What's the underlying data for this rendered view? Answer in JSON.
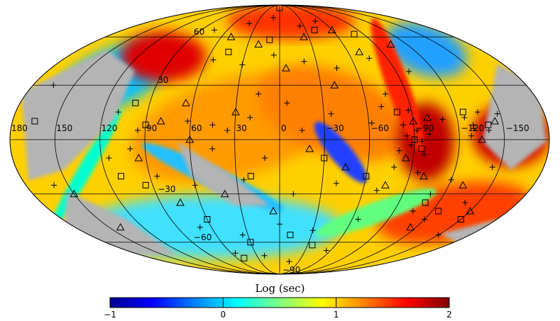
{
  "chart_data": {
    "type": "heatmap",
    "projection": "mollweide",
    "colorbar": {
      "title": "Log (sec)",
      "range": [
        -1,
        2
      ],
      "ticks": [
        -1,
        0,
        1,
        2
      ],
      "tick_labels": [
        "−1",
        "0",
        "1",
        "2"
      ],
      "colormap": [
        "#00008f",
        "#0000ff",
        "#0080ff",
        "#00ffff",
        "#80ff80",
        "#ffff00",
        "#ff8000",
        "#ff0000",
        "#800000"
      ]
    },
    "no_data_color": "#b4b4b4",
    "grid": true,
    "longitude_labels": [
      {
        "lon": 180,
        "text": "180"
      },
      {
        "lon": 150,
        "text": "150"
      },
      {
        "lon": 120,
        "text": "120"
      },
      {
        "lon": 90,
        "text": "90"
      },
      {
        "lon": 60,
        "text": "60"
      },
      {
        "lon": 30,
        "text": "30"
      },
      {
        "lon": 0,
        "text": "0"
      },
      {
        "lon": -30,
        "text": "−30"
      },
      {
        "lon": -60,
        "text": "−60"
      },
      {
        "lon": -90,
        "text": "−90"
      },
      {
        "lon": -120,
        "text": "−120"
      },
      {
        "lon": -150,
        "text": "−150"
      }
    ],
    "latitude_labels": [
      {
        "lat": 60,
        "text": "60"
      },
      {
        "lat": 30,
        "text": "30"
      },
      {
        "lat": -30,
        "text": "−30"
      },
      {
        "lat": -60,
        "text": "−60"
      },
      {
        "lat": -90,
        "text": "−90"
      }
    ],
    "markers": {
      "plus": [
        [
          62,
          10
        ],
        [
          45,
          8
        ],
        [
          20,
          12
        ],
        [
          -35,
          14
        ],
        [
          -62,
          9
        ],
        [
          -88,
          16
        ],
        [
          -110,
          11
        ],
        [
          -130,
          6
        ],
        [
          -148,
          14
        ],
        [
          55,
          45
        ],
        [
          30,
          42
        ],
        [
          5,
          48
        ],
        [
          -20,
          44
        ],
        [
          -45,
          40
        ],
        [
          -75,
          46
        ],
        [
          -100,
          38
        ],
        [
          85,
          -20
        ],
        [
          60,
          -25
        ],
        [
          25,
          -22
        ],
        [
          -10,
          -30
        ],
        [
          -40,
          -24
        ],
        [
          -70,
          -28
        ],
        [
          -95,
          -18
        ],
        [
          -120,
          -22
        ],
        [
          -145,
          -15
        ],
        [
          70,
          -50
        ],
        [
          35,
          -55
        ],
        [
          0,
          -48
        ],
        [
          -30,
          -52
        ],
        [
          -65,
          -45
        ],
        [
          -105,
          -40
        ],
        [
          -140,
          -35
        ],
        [
          40,
          70
        ],
        [
          10,
          75
        ],
        [
          -25,
          68
        ],
        [
          -50,
          72
        ],
        [
          75,
          65
        ],
        [
          20,
          -70
        ],
        [
          -15,
          -75
        ],
        [
          55,
          -68
        ],
        [
          -55,
          -66
        ],
        [
          -85,
          2
        ],
        [
          -92,
          5
        ],
        [
          -88,
          -3
        ],
        [
          -95,
          -1
        ],
        [
          -100,
          3
        ],
        [
          -80,
          -6
        ],
        [
          -97,
          -8
        ],
        [
          -83,
          8
        ],
        [
          -125,
          12
        ],
        [
          -130,
          8
        ],
        [
          -135,
          15
        ],
        [
          -140,
          5
        ],
        [
          -128,
          2
        ],
        [
          110,
          15
        ],
        [
          95,
          5
        ],
        [
          100,
          -5
        ],
        [
          115,
          -10
        ],
        [
          160,
          -25
        ],
        [
          165,
          30
        ],
        [
          -75,
          25
        ],
        [
          -70,
          18
        ],
        [
          -78,
          -15
        ],
        [
          -110,
          -30
        ],
        [
          -120,
          -45
        ],
        [
          -150,
          -55
        ],
        [
          15,
          25
        ],
        [
          -5,
          20
        ],
        [
          35,
          5
        ],
        [
          -15,
          5
        ],
        [
          45,
          -5
        ],
        [
          10,
          -10
        ]
      ],
      "triangle": [
        [
          50,
          60
        ],
        [
          20,
          55
        ],
        [
          -5,
          40
        ],
        [
          -40,
          30
        ],
        [
          -70,
          50
        ],
        [
          -105,
          55
        ],
        [
          80,
          10
        ],
        [
          65,
          20
        ],
        [
          95,
          -10
        ],
        [
          75,
          -35
        ],
        [
          40,
          -30
        ],
        [
          5,
          -40
        ],
        [
          -45,
          -15
        ],
        [
          -75,
          -25
        ],
        [
          -100,
          -20
        ],
        [
          -130,
          -25
        ],
        [
          -115,
          -50
        ],
        [
          -150,
          -40
        ],
        [
          150,
          -30
        ],
        [
          140,
          -50
        ],
        [
          -25,
          60
        ],
        [
          -60,
          65
        ],
        [
          -90,
          10
        ],
        [
          -85,
          -10
        ],
        [
          -100,
          12
        ],
        [
          -135,
          0
        ],
        [
          -145,
          10
        ],
        [
          30,
          15
        ],
        [
          -20,
          -5
        ],
        [
          60,
          0
        ]
      ],
      "square": [
        [
          45,
          50
        ],
        [
          10,
          58
        ],
        [
          -40,
          65
        ],
        [
          -80,
          62
        ],
        [
          0,
          85
        ],
        [
          100,
          20
        ],
        [
          90,
          8
        ],
        [
          110,
          -20
        ],
        [
          95,
          -25
        ],
        [
          165,
          10
        ],
        [
          -80,
          15
        ],
        [
          -90,
          0
        ],
        [
          -95,
          -5
        ],
        [
          -125,
          15
        ],
        [
          -140,
          8
        ],
        [
          60,
          -45
        ],
        [
          30,
          -60
        ],
        [
          -10,
          -55
        ],
        [
          -35,
          -62
        ],
        [
          50,
          -72
        ],
        [
          -60,
          -20
        ],
        [
          -110,
          -35
        ],
        [
          -125,
          -40
        ],
        [
          -150,
          -45
        ],
        [
          20,
          -20
        ],
        [
          -30,
          -10
        ]
      ]
    }
  }
}
